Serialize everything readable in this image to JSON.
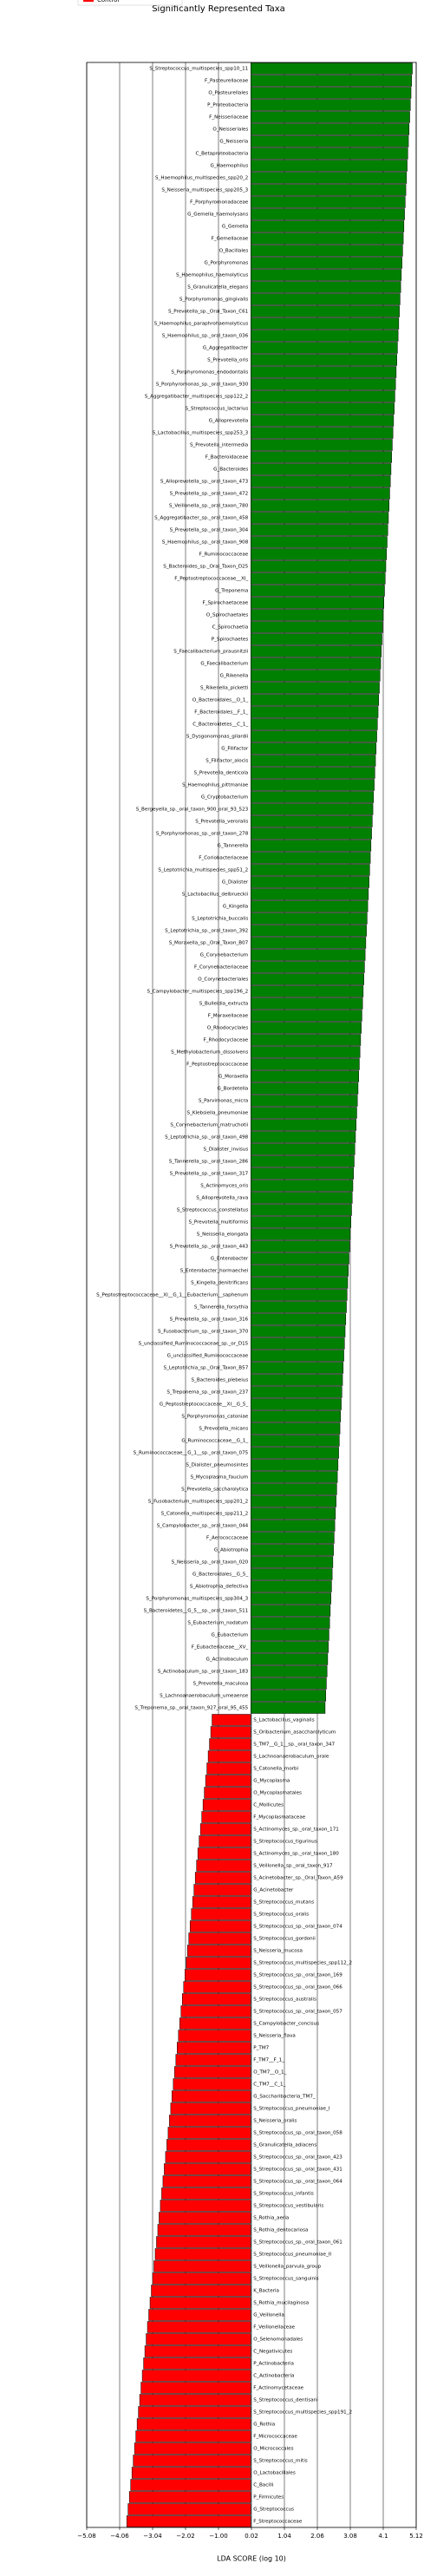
{
  "chart_data": {
    "type": "barh",
    "title": "Significantly Represented Taxa",
    "xlabel": "LDA SCORE (log 10)",
    "legend": {
      "label": "Control",
      "color": "#ff0000",
      "corner": "upper left"
    },
    "color_positive": "#008000",
    "color_negative": "#ff0000",
    "grid": true,
    "xlim": [
      -5.08,
      5.12
    ],
    "xticks": [
      {
        "value": -5.08,
        "label": "−5.08"
      },
      {
        "value": -4.06,
        "label": "−4.06"
      },
      {
        "value": -3.04,
        "label": "−3.04"
      },
      {
        "value": -2.02,
        "label": "−2.02"
      },
      {
        "value": -1.0,
        "label": "−1.00"
      },
      0.02,
      1.04,
      2.06,
      3.08,
      4.1,
      5.12
    ],
    "categories": [
      "S_Streptococcus_multispecies_spp10_11",
      "F_Pasteurellaceae",
      "O_Pasteurellales",
      "P_Proteobacteria",
      "F_Neisseriaceae",
      "O_Neisseriales",
      "G_Neisseria",
      "C_Betaproteobacteria",
      "G_Haemophilus",
      "S_Haemophilus_multispecies_spp20_2",
      "S_Neisseria_multispecies_spp205_3",
      "F_Porphyromonadaceae",
      "G_Gemella_haemolysans",
      "G_Gemella",
      "F_Gemellaceae",
      "O_Bacillales",
      "G_Porphyromonas",
      "S_Haemophilus_haemolyticus",
      "S_Granulicatella_elegans",
      "S_Porphyromonas_gingivalis",
      "S_Prevotella_sp._Oral_Taxon_C61",
      "S_Haemophilus_paraphrohaemolyticus",
      "S_Haemophilus_sp._oral_taxon_036",
      "G_Aggregatibacter",
      "S_Prevotella_oris",
      "S_Porphyromonas_endodontalis",
      "S_Porphyromonas_sp._oral_taxon_930",
      "S_Aggregatibacter_multispecies_spp122_2",
      "S_Streptococcus_lactarius",
      "G_Alloprevotella",
      "S_Lactobacillus_multispecies_spp253_3",
      "S_Prevotella_intermedia",
      "F_Bacteroidaceae",
      "G_Bacteroides",
      "S_Alloprevotella_sp._oral_taxon_473",
      "S_Prevotella_sp._oral_taxon_472",
      "S_Veillonella_sp._oral_taxon_780",
      "S_Aggregatibacter_sp._oral_taxon_458",
      "S_Prevotella_sp._oral_taxon_304",
      "S_Haemophilus_sp._oral_taxon_908",
      "F_Ruminococcaceae",
      "S_Bacteroides_sp._Oral_Taxon_D25",
      "F_Peptostreptococcaceae__XI_",
      "G_Treponema",
      "F_Spirochaetaceae",
      "O_Spirochaetales",
      "C_Spirochaetia",
      "P_Spirochaetes",
      "S_Faecalibacterium_prausnitzii",
      "G_Faecalibacterium",
      "G_Rikenella",
      "S_Rikenella_picketti",
      "O_Bacteroidales__O_1_",
      "F_Bacteroidales__F_1_",
      "C_Bacteroidetes__C_1_",
      "S_Dysgonomonas_gilardii",
      "G_Filifactor",
      "S_Filifactor_alocis",
      "S_Prevotella_denticola",
      "S_Haemophilus_pittmaniae",
      "G_Cryptobacterium",
      "S_Bergeyella_sp._oral_taxon_900_oral_93_523",
      "S_Prevotella_veroralis",
      "S_Porphyromonas_sp._oral_taxon_278",
      "G_Tannerella",
      "F_Coriobacteriaceae",
      "S_Leptotrichia_multispecies_spp51_2",
      "G_Dialister",
      "S_Lactobacillus_delbrueckii",
      "G_Kingella",
      "S_Leptotrichia_buccalis",
      "S_Leptotrichia_sp._oral_taxon_392",
      "S_Moraxella_sp._Oral_Taxon_B07",
      "G_Corynebacterium",
      "F_Corynebacteriaceae",
      "O_Corynebacteriales",
      "S_Campylobacter_multispecies_spp196_2",
      "S_Bulleidia_extructa",
      "F_Moraxellaceae",
      "O_Rhodocyclales",
      "F_Rhodocyclaceae",
      "S_Methylobacterium_dissolvens",
      "F_Peptostreptococcaceae",
      "G_Moraxella",
      "G_Bordetella",
      "S_Parvimonas_micra",
      "S_Klebsiella_pneumoniae",
      "S_Corynebacterium_matruchotii",
      "S_Leptotrichia_sp._oral_taxon_498",
      "S_Dialister_invisus",
      "S_Tannerella_sp._oral_taxon_286",
      "S_Prevotella_sp._oral_taxon_317",
      "S_Actinomyces_oris",
      "S_Alloprevotella_rava",
      "S_Streptococcus_constellatus",
      "S_Prevotella_multiformis",
      "S_Neisseria_elongata",
      "S_Prevotella_sp._oral_taxon_443",
      "G_Enterobacter",
      "S_Enterobacter_hormaechei",
      "S_Kingella_denitrificans",
      "S_Peptostreptococcaceae__XI__G_1__Eubacterium__saphenum",
      "S_Tannerella_forsythia",
      "S_Prevotella_sp._oral_taxon_316",
      "S_Fusobacterium_sp._oral_taxon_370",
      "S_unclassified_Ruminococcaceae_sp._or_D15",
      "G_unclassified_Ruminococcaceae",
      "S_Leptotrichia_sp._Oral_Taxon_B57",
      "S_Bacteroides_plebeius",
      "S_Treponema_sp._oral_taxon_237",
      "G_Peptostreptococcaceae__XI__G_5_",
      "S_Porphyromonas_catoniae",
      "S_Prevotella_micans",
      "G_Ruminococcaceae__G_1_",
      "S_Ruminococcaceae__G_1__sp._oral_taxon_075",
      "S_Dialister_pneumosintes",
      "S_Mycoplasma_faucium",
      "S_Prevotella_saccharolytica",
      "S_Fusobacterium_multispecies_spp201_2",
      "S_Catonella_multispecies_spp211_2",
      "S_Campylobacter_sp._oral_taxon_044",
      "F_Aerococcaceae",
      "G_Abiotrophia",
      "S_Neisseria_sp._oral_taxon_020",
      "G_Bacteroidales__G_5_",
      "S_Abiotrophia_defectiva",
      "S_Porphyromonas_multispecies_spp304_3",
      "S_Bacteroidetes__G_5__sp._oral_taxon_511",
      "S_Eubacterium_nodatum",
      "G_Eubacterium",
      "F_Eubacteriaceae__XV_",
      "G_Actinobaculum",
      "S_Actinobaculum_sp._oral_taxon_183",
      "S_Prevotella_maculosa",
      "S_Lachnoanaerobaculum_umeaense",
      "S_Treponema_sp._oral_taxon_927_oral_95_455",
      "S_Lactobacillus_vaginalis",
      "S_Oribacterium_asaccharolyticum",
      "S_TM7__G_1__sp._oral_taxon_347",
      "S_Lachnoanaerobaculum_orale",
      "S_Catonella_morbi",
      "G_Mycoplasma",
      "O_Mycoplasmatales",
      "C_Mollicutes",
      "F_Mycoplasmataceae",
      "S_Actinomyces_sp._oral_taxon_171",
      "S_Streptococcus_tigurinus",
      "S_Actinomyces_sp._oral_taxon_180",
      "S_Veillonella_sp._oral_taxon_917",
      "S_Acinetobacter_sp._Oral_Taxon_A59",
      "G_Acinetobacter",
      "S_Streptococcus_mutans",
      "S_Streptococcus_oralis",
      "S_Streptococcus_sp._oral_taxon_074",
      "S_Streptococcus_gordonii",
      "S_Neisseria_mucosa",
      "S_Streptococcus_multispecies_spp112_2",
      "S_Streptococcus_sp._oral_taxon_169",
      "S_Streptococcus_sp._oral_taxon_066",
      "S_Streptococcus_australis",
      "S_Streptococcus_sp._oral_taxon_057",
      "S_Campylobacter_concisus",
      "S_Neisseria_flava",
      "P_TM7",
      "F_TM7__F_1_",
      "O_TM7__O_1_",
      "C_TM7__C_1_",
      "G_Saccharibacteria_TM7_",
      "S_Streptococcus_pneumoniae_I",
      "S_Neisseria_oralis",
      "S_Streptococcus_sp._oral_taxon_058",
      "S_Granulicatella_adiacens",
      "S_Streptococcus_sp._oral_taxon_423",
      "S_Streptococcus_sp._oral_taxon_431",
      "S_Streptococcus_sp._oral_taxon_064",
      "S_Streptococcus_infantis",
      "S_Streptococcus_vestibularis",
      "S_Rothia_aeria",
      "S_Rothia_dentocariosa",
      "S_Streptococcus_sp._oral_taxon_061",
      "S_Streptococcus_pneumoniae_II",
      "S_Veillonella_parvula_group",
      "S_Streptococcus_sanguinis",
      "K_Bacteria",
      "S_Rothia_mucilaginosa",
      "G_Veillonella",
      "F_Veillonellaceae",
      "O_Selenomonadales",
      "C_Negativicutes",
      "P_Actinobacteria",
      "C_Actinobacteria",
      "F_Actinomycetaceae",
      "S_Streptococcus_dentisani",
      "S_Streptococcus_multispecies_spp191_2",
      "G_Rothia",
      "F_Micrococcaceae",
      "O_Micrococcales",
      "S_Streptococcus_mitis",
      "O_Lactobacillales",
      "C_Bacilli",
      "P_Firmicutes",
      "G_Streptococcus",
      "F_Streptococcaceae"
    ],
    "values": [
      5,
      4.98,
      4.96,
      4.94,
      4.92,
      4.9,
      4.88,
      4.86,
      4.84,
      4.82,
      4.8,
      4.78,
      4.76,
      4.74,
      4.72,
      4.7,
      4.68,
      4.66,
      4.64,
      4.62,
      4.6,
      4.58,
      4.56,
      4.54,
      4.52,
      4.5,
      4.48,
      4.46,
      4.44,
      4.42,
      4.4,
      4.38,
      4.36,
      4.34,
      4.32,
      4.3,
      4.28,
      4.26,
      4.24,
      4.22,
      4.2,
      4.18,
      4.16,
      4.14,
      4.12,
      4.1,
      4.08,
      4.06,
      4.04,
      4.02,
      4,
      3.98,
      3.96,
      3.94,
      3.92,
      3.9,
      3.88,
      3.86,
      3.84,
      3.82,
      3.8,
      3.78,
      3.76,
      3.74,
      3.72,
      3.7,
      3.68,
      3.66,
      3.64,
      3.62,
      3.6,
      3.58,
      3.56,
      3.54,
      3.52,
      3.5,
      3.48,
      3.46,
      3.44,
      3.42,
      3.4,
      3.38,
      3.36,
      3.34,
      3.32,
      3.3,
      3.28,
      3.26,
      3.24,
      3.22,
      3.2,
      3.18,
      3.16,
      3.14,
      3.12,
      3.1,
      3.08,
      3.06,
      3.04,
      3.02,
      3,
      2.98,
      2.96,
      2.94,
      2.92,
      2.9,
      2.88,
      2.86,
      2.84,
      2.82,
      2.8,
      2.78,
      2.76,
      2.74,
      2.72,
      2.7,
      2.68,
      2.66,
      2.64,
      2.62,
      2.6,
      2.58,
      2.56,
      2.54,
      2.52,
      2.5,
      2.48,
      2.46,
      2.44,
      2.42,
      2.4,
      2.38,
      2.36,
      2.34,
      2.32,
      2.3,
      -1.2,
      -1.24,
      -1.28,
      -1.32,
      -1.36,
      -1.4,
      -1.44,
      -1.48,
      -1.52,
      -1.56,
      -1.6,
      -1.64,
      -1.68,
      -1.72,
      -1.76,
      -1.8,
      -1.84,
      -1.88,
      -1.92,
      -1.96,
      -2,
      -2.04,
      -2.08,
      -2.12,
      -2.16,
      -2.2,
      -2.24,
      -2.28,
      -2.32,
      -2.36,
      -2.4,
      -2.44,
      -2.48,
      -2.52,
      -2.56,
      -2.6,
      -2.64,
      -2.68,
      -2.72,
      -2.76,
      -2.8,
      -2.84,
      -2.88,
      -2.92,
      -2.96,
      -3,
      -3.04,
      -3.08,
      -3.12,
      -3.16,
      -3.2,
      -3.24,
      -3.28,
      -3.32,
      -3.36,
      -3.4,
      -3.44,
      -3.48,
      -3.52,
      -3.56,
      -3.6,
      -3.64,
      -3.68,
      -3.72,
      -3.76,
      -3.8,
      -3.84
    ]
  }
}
